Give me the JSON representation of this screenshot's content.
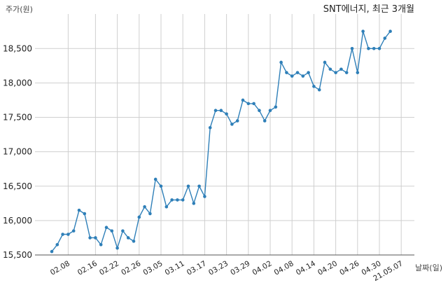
{
  "chart_data": {
    "type": "line",
    "title": "SNT에너지, 최근 3개월",
    "ylabel": "주가(원)",
    "xlabel": "날짜(일)",
    "ylim": [
      15500,
      18900
    ],
    "yticks": [
      15500,
      16000,
      16500,
      17000,
      17500,
      18000,
      18500
    ],
    "ytick_labels": [
      "15,500",
      "16,000",
      "16,500",
      "17,000",
      "17,500",
      "18,000",
      "18,500"
    ],
    "xtick_labels": [
      "02.08",
      "02.16",
      "02.22",
      "02.26",
      "03.05",
      "03.11",
      "03.17",
      "03.23",
      "03.29",
      "04.02",
      "04.08",
      "04.14",
      "04.20",
      "04.26",
      "04.30",
      "21.05.07"
    ],
    "xtick_index": [
      3,
      8,
      12,
      16,
      20,
      24,
      28,
      32,
      36,
      40,
      44,
      48,
      52,
      56,
      60,
      64
    ],
    "grid": true,
    "color": "#2e7fb8",
    "series": [
      {
        "values": [
          15550,
          15650,
          15800,
          15800,
          15850,
          16150,
          16100,
          15750,
          15750,
          15650,
          15900,
          15850,
          15600,
          15850,
          15750,
          15700,
          16050,
          16200,
          16100,
          16600,
          16500,
          16200,
          16300,
          16300,
          16300,
          16500,
          16250,
          16500,
          16350,
          17350,
          17600,
          17600,
          17550,
          17400,
          17450,
          17750,
          17700,
          17700,
          17600,
          17450,
          17600,
          17650,
          18300,
          18150,
          18100,
          18150,
          18100,
          18150,
          17950,
          17900,
          18300,
          18200,
          18150,
          18200,
          18150,
          18500,
          18150,
          18750,
          18500,
          18500,
          18500,
          18650,
          18750
        ]
      }
    ]
  }
}
